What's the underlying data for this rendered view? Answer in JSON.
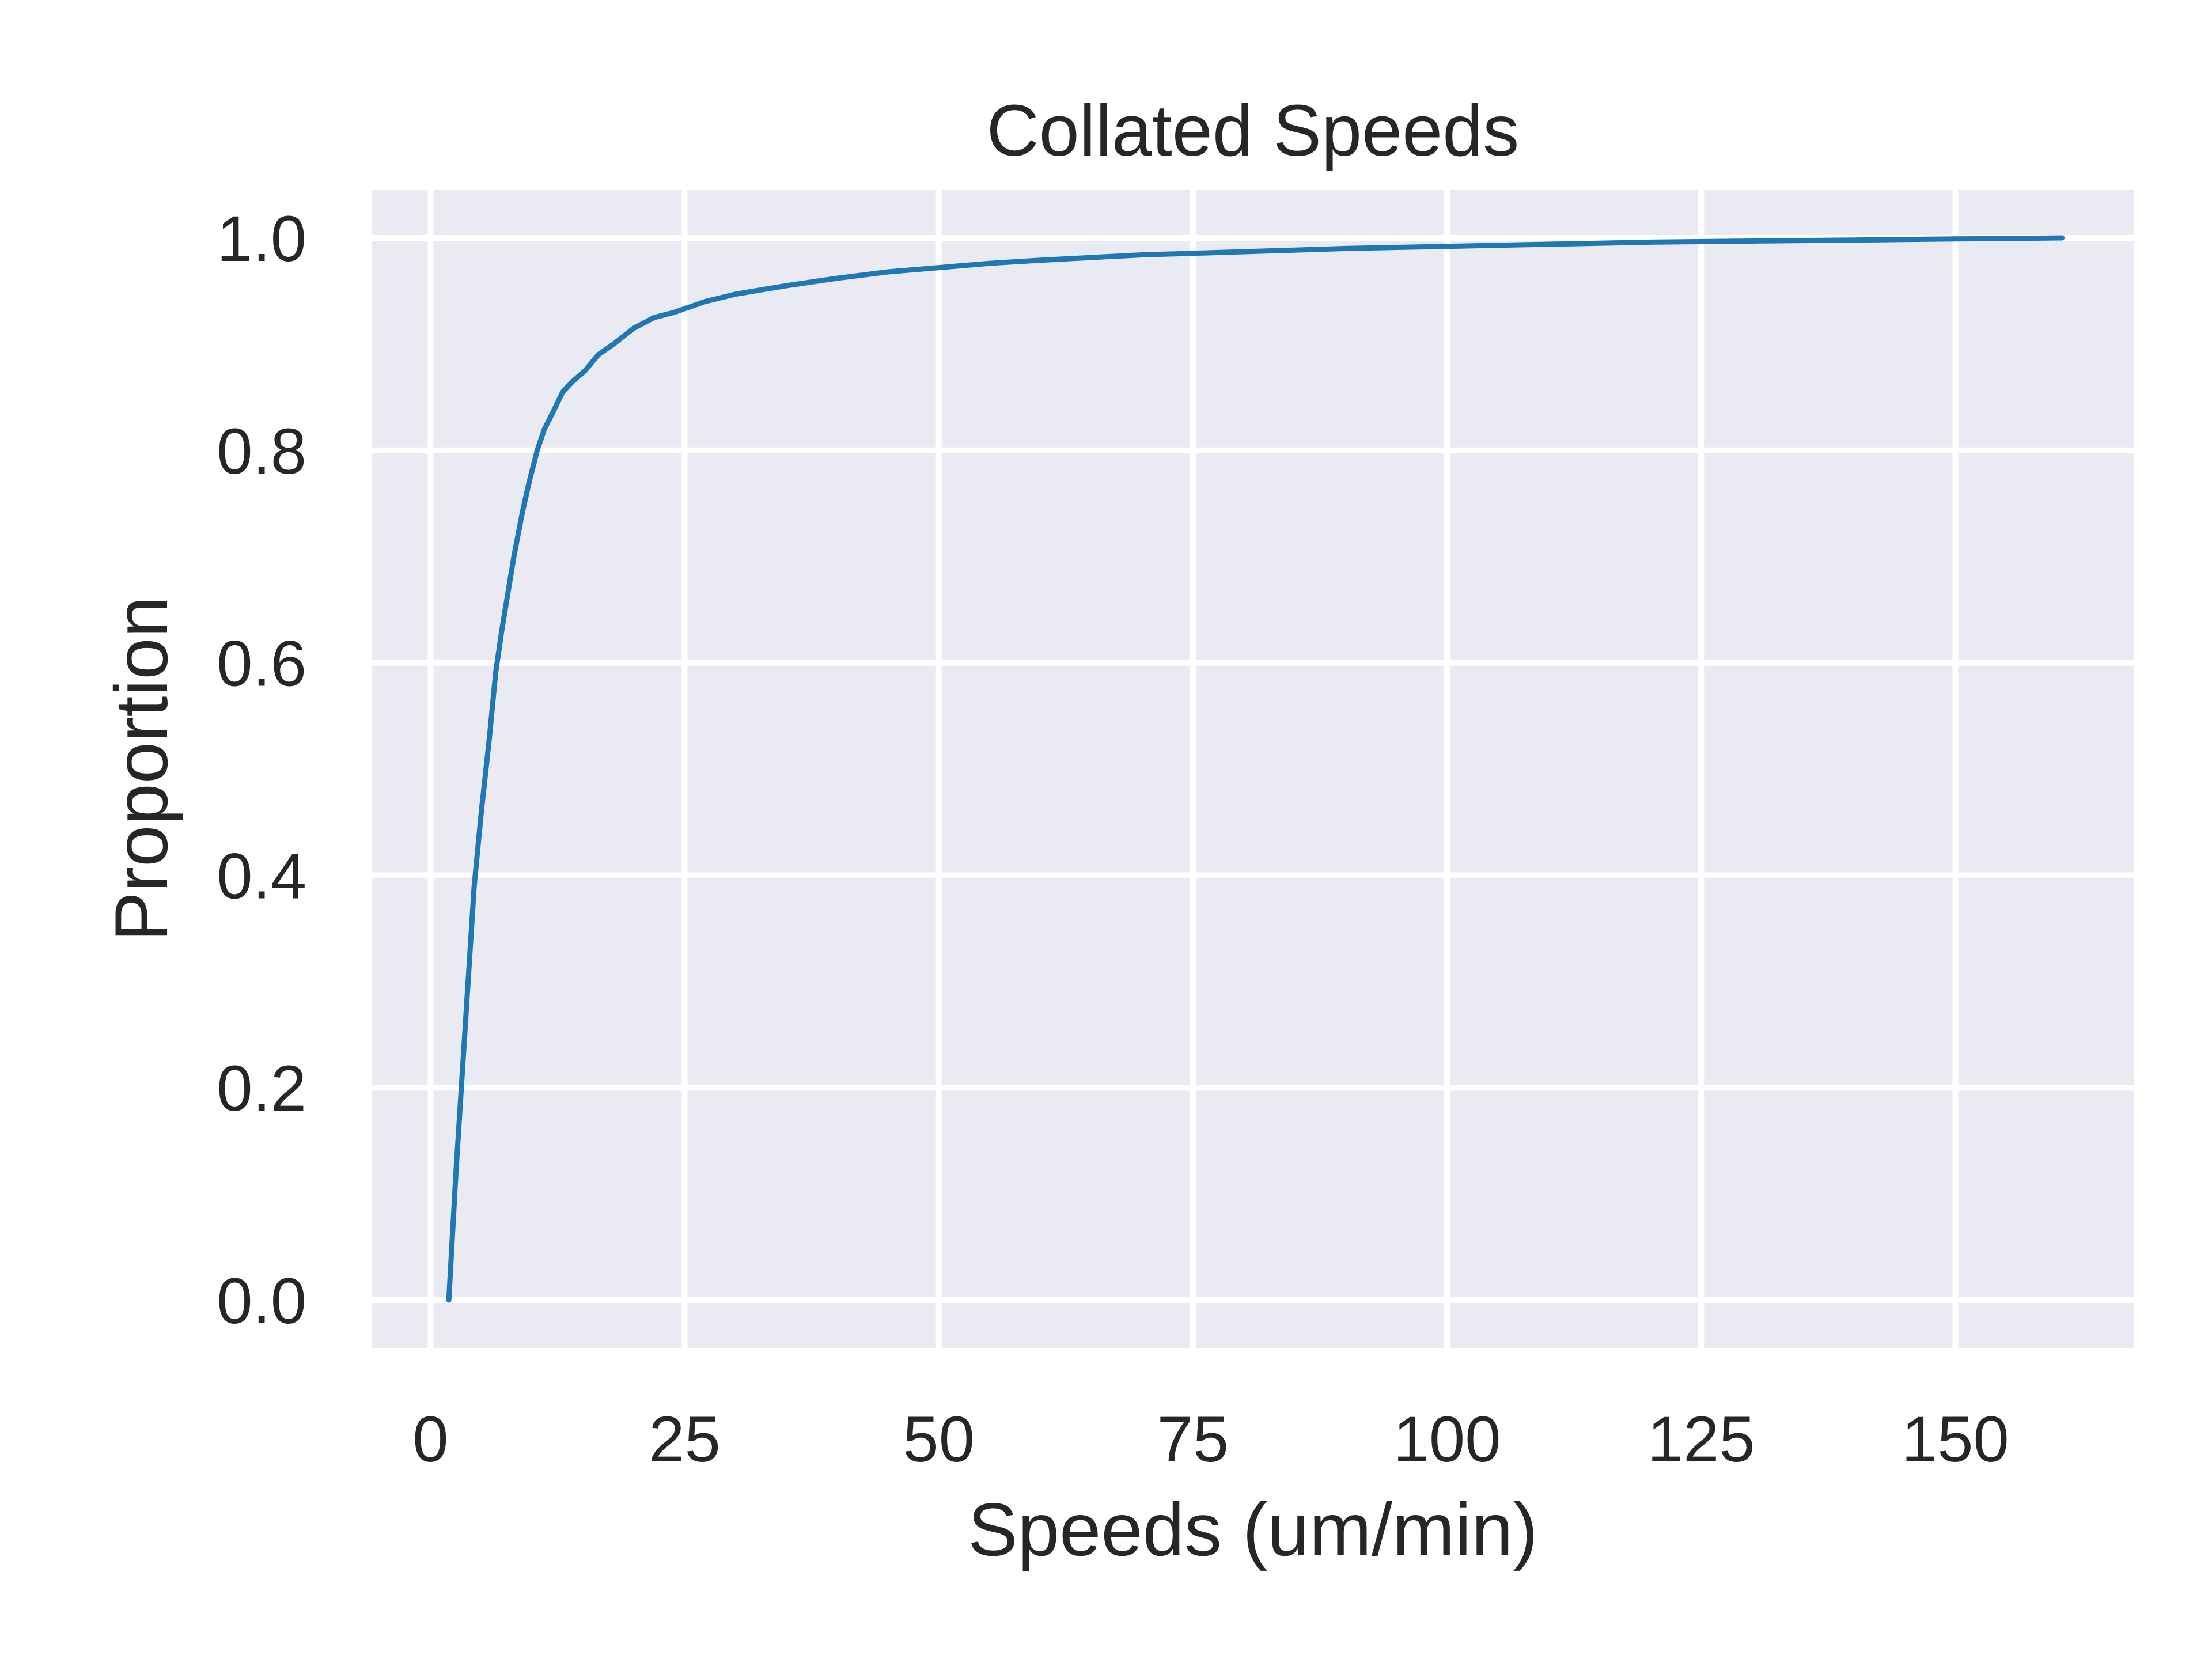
{
  "chart_data": {
    "type": "line",
    "title": "Collated Speeds",
    "xlabel": "Speeds (um/min)",
    "ylabel": "Proportion",
    "xlim": [
      -5.8,
      167.6
    ],
    "ylim": [
      -0.045,
      1.045
    ],
    "xticks": [
      0,
      25,
      50,
      75,
      100,
      125,
      150
    ],
    "yticks": [
      0.0,
      0.2,
      0.4,
      0.6,
      0.8,
      1.0
    ],
    "xtick_labels": [
      "0",
      "25",
      "50",
      "75",
      "100",
      "125",
      "150"
    ],
    "ytick_labels": [
      "0.0",
      "0.2",
      "0.4",
      "0.6",
      "0.8",
      "1.0"
    ],
    "grid": true,
    "background_color": "#eaeaf2",
    "grid_color": "#ffffff",
    "series": [
      {
        "color": "#1f77b4",
        "x": [
          1.8,
          2.5,
          3.5,
          4.3,
          5.0,
          5.8,
          6.4,
          7.0,
          7.6,
          8.2,
          9.0,
          9.7,
          10.5,
          11.2,
          12.0,
          13.0,
          14.0,
          15.2,
          16.5,
          18.0,
          20.0,
          22.0,
          24.0,
          27.0,
          30.0,
          35.0,
          40.0,
          45.0,
          50.0,
          55.0,
          60.0,
          70.0,
          80.0,
          90.0,
          100.0,
          110.0,
          120.0,
          130.0,
          140.0,
          150.0,
          160.5
        ],
        "y": [
          0.0,
          0.12,
          0.27,
          0.39,
          0.46,
          0.53,
          0.59,
          0.63,
          0.665,
          0.7,
          0.74,
          0.77,
          0.8,
          0.82,
          0.835,
          0.855,
          0.865,
          0.875,
          0.89,
          0.9,
          0.915,
          0.925,
          0.93,
          0.94,
          0.947,
          0.955,
          0.962,
          0.968,
          0.972,
          0.976,
          0.979,
          0.984,
          0.987,
          0.99,
          0.992,
          0.994,
          0.996,
          0.997,
          0.998,
          0.999,
          1.0
        ]
      }
    ]
  }
}
